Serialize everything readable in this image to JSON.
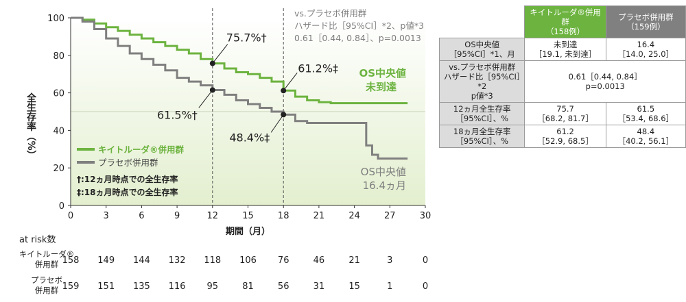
{
  "chart_data": {
    "type": "line",
    "title": "",
    "xlabel": "期間（月）",
    "ylabel": "全生存率（%）",
    "xlim": [
      0,
      30
    ],
    "ylim": [
      0,
      100
    ],
    "xticks": [
      0,
      3,
      6,
      9,
      12,
      15,
      18,
      21,
      24,
      27,
      30
    ],
    "yticks": [
      0,
      20,
      40,
      60,
      80,
      100
    ],
    "series": [
      {
        "name": "キイトルーダ®併用群",
        "color": "#6cb33f",
        "x": [
          0,
          1,
          2,
          3,
          4,
          5,
          6,
          7,
          8,
          9,
          10,
          11,
          12,
          13,
          14,
          15,
          16,
          17,
          18,
          19,
          20,
          21,
          22,
          23,
          24,
          25,
          26,
          27,
          28.5
        ],
        "y": [
          100,
          99,
          97,
          95,
          93,
          91,
          89,
          87,
          85,
          83,
          81,
          78,
          75.7,
          73,
          71,
          70,
          68,
          66,
          61.2,
          58,
          56,
          55,
          54.5,
          54.5,
          54.5,
          54.5,
          54.5,
          54.5,
          54.5
        ]
      },
      {
        "name": "プラセボ併用群",
        "color": "#7f7f7f",
        "x": [
          0,
          1,
          2,
          3,
          4,
          5,
          6,
          7,
          8,
          9,
          10,
          11,
          12,
          13,
          14,
          15,
          16,
          17,
          18,
          19,
          20,
          21,
          22,
          23,
          24,
          25,
          25.5,
          26,
          28.5
        ],
        "y": [
          100,
          98,
          94,
          89,
          85,
          81,
          78,
          75,
          72,
          68,
          66,
          64,
          61.5,
          59,
          56,
          54,
          52,
          50,
          48.4,
          45,
          44,
          44,
          44,
          44,
          44,
          32,
          27,
          25,
          25
        ]
      }
    ],
    "median_line": 50,
    "vlines": [
      12,
      18
    ],
    "points": [
      {
        "x": 12,
        "y": 75.7,
        "label": "75.7%†"
      },
      {
        "x": 12,
        "y": 61.5,
        "label": "61.5%†"
      },
      {
        "x": 18,
        "y": 61.2,
        "label": "61.2%‡"
      },
      {
        "x": 18,
        "y": 48.4,
        "label": "48.4%‡"
      }
    ],
    "annotations": {
      "hr_line1": "vs.プラセボ併用群",
      "hr_line2": "ハザード比［95%CI］*2、p値*3",
      "hr_line3": "0.61［0.44, 0.84］、p=0.0013",
      "os_k1": "OS中央値",
      "os_k2": "未到達",
      "os_p1": "OS中央値",
      "os_p2": "16.4ヵ月",
      "note1": "†:12ヵ月時点での全生存率",
      "note2": "‡:18ヵ月時点での全生存率"
    },
    "legend_position": "bottom-left",
    "at_risk": {
      "title": "at risk数",
      "times": [
        0,
        3,
        6,
        9,
        12,
        15,
        18,
        21,
        24,
        27,
        30
      ],
      "rows": [
        {
          "label1": "キイトルーダ®",
          "label2": "併用群",
          "values": [
            158,
            149,
            144,
            132,
            118,
            106,
            76,
            46,
            21,
            3,
            0
          ]
        },
        {
          "label1": "プラセボ",
          "label2": "併用群",
          "values": [
            159,
            151,
            135,
            116,
            95,
            81,
            56,
            31,
            15,
            1,
            0
          ]
        }
      ]
    }
  },
  "table": {
    "header_k": "キイトルーダ®併用群\n（158例）",
    "header_p": "プラセボ併用群\n（159例）",
    "rows": [
      {
        "label": "OS中央値\n［95%CI］*1、月",
        "k": "未到達\n［19.1, 未到達］",
        "p": "16.4\n［14.0, 25.0］"
      },
      {
        "label": "vs.プラセボ併用群\nハザード比［95%CI］*2\np値*3",
        "merged": "0.61［0.44, 0.84］\np=0.0013"
      },
      {
        "label": "12ヵ月全生存率\n［95%CI］、%",
        "k": "75.7\n［68.2, 81.7］",
        "p": "61.5\n［53.4, 68.6］"
      },
      {
        "label": "18ヵ月全生存率\n［95%CI］、%",
        "k": "61.2\n［52.9, 68.5］",
        "p": "48.4\n［40.2, 56.1］"
      }
    ]
  }
}
